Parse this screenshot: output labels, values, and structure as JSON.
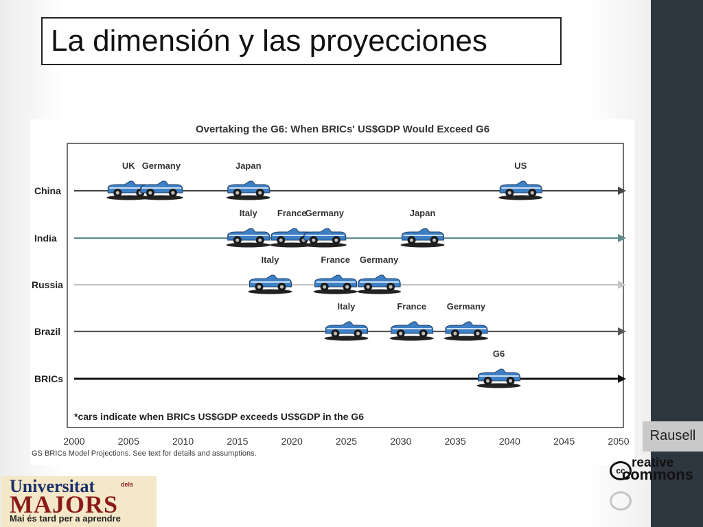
{
  "slide": {
    "title": "La dimensión y las proyecciones",
    "credit": "Rausell"
  },
  "cc_logo": {
    "cc": "cc",
    "word1": "reative",
    "word2": "commons"
  },
  "uni_logo": {
    "line1": "Universitat",
    "dels": "dels",
    "line2": "MAJORS",
    "line3": "Mai és tard per a aprendre"
  },
  "chart_data": {
    "type": "timeline",
    "title": "Overtaking the G6: When BRICs' US$GDP Would Exceed G6",
    "note": "*cars indicate when BRICs US$GDP exceeds US$GDP in the G6",
    "source": "GS BRICs Model Projections. See text for details and assumptions.",
    "xlim": [
      2000,
      2050
    ],
    "x_ticks": [
      2000,
      2005,
      2010,
      2015,
      2020,
      2025,
      2030,
      2035,
      2040,
      2045,
      2050
    ],
    "rows": [
      {
        "name": "China",
        "color": "#444444",
        "events": [
          {
            "label": "UK",
            "year": 2005
          },
          {
            "label": "Germany",
            "year": 2008
          },
          {
            "label": "Japan",
            "year": 2016
          },
          {
            "label": "US",
            "year": 2041
          }
        ]
      },
      {
        "name": "India",
        "color": "#5e8a8e",
        "events": [
          {
            "label": "Italy",
            "year": 2016
          },
          {
            "label": "France",
            "year": 2020
          },
          {
            "label": "Germany",
            "year": 2023
          },
          {
            "label": "Japan",
            "year": 2032
          }
        ]
      },
      {
        "name": "Russia",
        "color": "#c4c4c4",
        "events": [
          {
            "label": "Italy",
            "year": 2018
          },
          {
            "label": "France",
            "year": 2024
          },
          {
            "label": "Germany",
            "year": 2028
          }
        ]
      },
      {
        "name": "Brazil",
        "color": "#555555",
        "events": [
          {
            "label": "Italy",
            "year": 2025
          },
          {
            "label": "France",
            "year": 2031
          },
          {
            "label": "Germany",
            "year": 2036
          }
        ]
      },
      {
        "name": "BRICs",
        "color": "#111111",
        "events": [
          {
            "label": "G6",
            "year": 2039
          }
        ]
      }
    ],
    "car_color": "#3d7fc4"
  }
}
